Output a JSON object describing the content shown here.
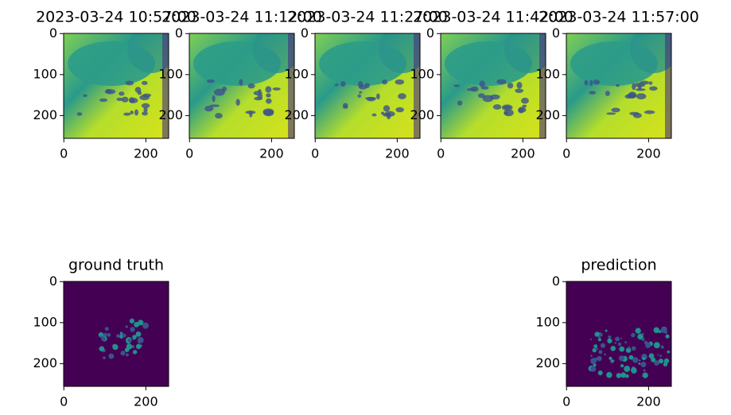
{
  "chart_data": [
    {
      "type": "image",
      "title": "2023-03-24 10:57:00",
      "xlim": [
        -0.5,
        255.5
      ],
      "ylim": [
        255.5,
        -0.5
      ],
      "xticks": [
        0,
        200
      ],
      "yticks": [
        0,
        100,
        200
      ]
    },
    {
      "type": "image",
      "title": "2023-03-24 11:12:00",
      "xlim": [
        -0.5,
        255.5
      ],
      "ylim": [
        255.5,
        -0.5
      ],
      "xticks": [
        0,
        200
      ],
      "yticks": [
        0,
        100,
        200
      ]
    },
    {
      "type": "image",
      "title": "2023-03-24 11:27:00",
      "xlim": [
        -0.5,
        255.5
      ],
      "ylim": [
        255.5,
        -0.5
      ],
      "xticks": [
        0,
        200
      ],
      "yticks": [
        0,
        100,
        200
      ]
    },
    {
      "type": "image",
      "title": "2023-03-24 11:42:00",
      "xlim": [
        -0.5,
        255.5
      ],
      "ylim": [
        255.5,
        -0.5
      ],
      "xticks": [
        0,
        200
      ],
      "yticks": [
        0,
        100,
        200
      ]
    },
    {
      "type": "image",
      "title": "2023-03-24 11:57:00",
      "xlim": [
        -0.5,
        255.5
      ],
      "ylim": [
        255.5,
        -0.5
      ],
      "xticks": [
        0,
        200
      ],
      "yticks": [
        0,
        100,
        200
      ]
    },
    {
      "type": "image",
      "title": "ground truth",
      "xlim": [
        -0.5,
        255.5
      ],
      "ylim": [
        255.5,
        -0.5
      ],
      "xticks": [
        0,
        200
      ],
      "yticks": [
        0,
        100,
        200
      ]
    },
    {
      "type": "image",
      "title": "prediction",
      "xlim": [
        -0.5,
        255.5
      ],
      "ylim": [
        255.5,
        -0.5
      ],
      "xticks": [
        0,
        200
      ],
      "yticks": [
        0,
        100,
        200
      ]
    }
  ]
}
